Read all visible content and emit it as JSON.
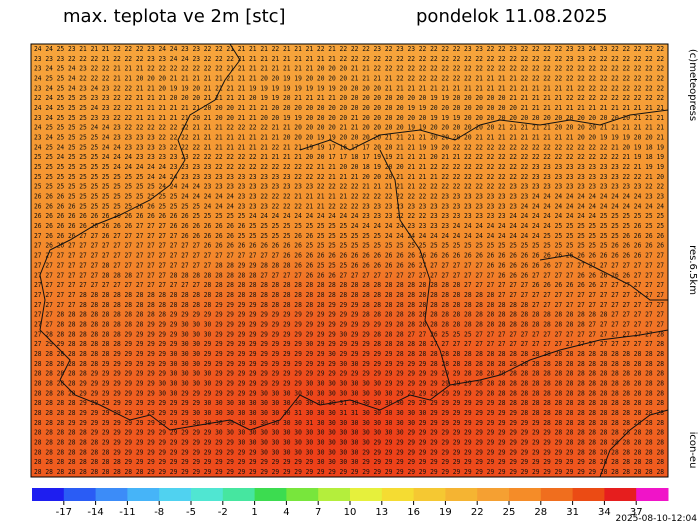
{
  "title": "max. teplota ve 2m [stc]",
  "date": "pondelok 11.08.2025",
  "copyright": "(c)meteopress",
  "resolution": "res.6.5km",
  "model": "icon-eu",
  "run": "2025-08-10-12:04",
  "grid_rows": [
    "24 24 25 23 21 21 21 22 22 22 23 24 24 23 23 22 22 21 21 21 21 22 21 21 21 22 21 22 22 22 23 22 23 23 22 22 22 22 23 23 22 22 23 22 22 22 22 23 23 24 23 22 22 22 22 22",
    "23 23 23 22 22 22 21 22 22 22 23 23 24 24 23 22 22 22 21 21 21 21 21 21 21 21 21 22 22 22 22 22 22 22 22 22 22 22 22 22 22 22 22 22 22 22 22 23 23 22 22 22 22 22 22 22",
    "23 24 25 24 23 22 22 21 21 21 22 22 22 22 22 22 22 21 21 21 21 21 21 21 21 20 20 20 21 21 22 22 22 22 22 22 22 22 22 22 22 22 22 22 22 22 22 22 22 22 22 22 22 22 22 22",
    "24 25 25 24 22 22 22 21 21 20 20 20 21 21 21 21 21 21 21 21 20 20 19 19 20 20 20 20 21 21 21 21 22 22 22 22 22 22 22 21 21 21 21 22 22 22 22 22 22 22 22 22 22 22 22 22",
    "23 24 25 24 23 24 23 22 22 21 21 20 19 19 20 21 21 21 21 19 19 19 19 19 19 19 19 20 20 20 20 21 21 21 21 21 21 21 21 21 21 21 21 21 21 21 21 21 22 22 22 22 22 22 22 22",
    "22 24 25 25 25 23 23 22 22 21 21 21 20 20 20 21 21 21 21 20 19 19 20 21 21 21 21 20 20 20 20 20 20 20 20 19 19 20 20 20 20 20 21 21 21 21 21 22 22 22 22 22 22 22 22 22",
    "24 24 25 25 25 24 23 22 22 21 21 21 21 21 21 20 20 20 21 21 21 20 20 20 20 20 20 20 20 20 20 20 20 19 19 20 20 20 20 20 20 20 20 21 21 21 21 21 21 21 21 21 21 21 21 21",
    "23 24 25 25 25 23 23 22 22 21 21 21 21 21 20 21 20 20 21 21 20 20 19 19 20 20 20 20 21 20 20 20 20 20 20 19 19 19 20 20 20 20 20 20 20 20 20 20 20 20 20 20 20 21 21 21",
    "24 25 25 25 25 24 24 23 22 22 22 22 22 22 21 21 21 22 22 22 22 21 21 20 20 20 20 21 21 20 20 20 20 19 19 20 20 20 20 20 20 21 21 21 21 21 20 20 20 20 21 21 21 21 21 21",
    "23 24 25 25 25 25 24 23 23 23 23 22 22 22 21 21 21 21 21 21 21 21 20 20 20 19 19 20 20 20 20 21 21 21 21 20 20 20 20 21 21 21 21 21 21 21 21 21 20 20 19 19 19 20 20 21",
    "24 25 24 25 25 25 24 24 23 23 23 23 22 22 22 21 21 21 21 21 21 22 21 21 19 19 17 16 17 17 20 20 21 21 19 19 20 22 22 22 22 22 22 22 22 22 22 22 22 22 22 21 20 19 18 19",
    "25 25 24 25 25 25 24 24 24 23 23 23 23 23 22 22 22 22 22 22 21 21 21 21 20 20 17 17 18 17 19 19 21 21 21 20 21 21 22 22 22 22 22 22 22 22 22 22 22 22 22 22 21 19 18 19",
    "25 25 25 25 25 25 25 24 24 24 24 24 23 23 23 23 22 22 22 22 22 22 22 22 22 21 21 20 20 18 19 20 20 21 21 22 22 22 22 22 22 22 22 22 23 23 23 23 23 23 23 23 22 21 19 19",
    "25 25 25 25 25 25 25 25 25 25 24 24 24 23 23 23 23 23 23 23 23 23 23 22 22 22 21 21 21 20 20 20 21 21 21 21 22 22 22 22 22 22 22 22 23 23 23 23 23 23 23 23 22 22 21 20",
    "25 25 25 25 25 25 25 25 25 25 25 24 24 24 24 23 23 23 23 23 23 23 23 23 23 22 22 22 22 21 21 21 21 21 22 22 22 22 22 22 22 22 23 23 23 23 23 23 23 23 23 23 23 23 22 22",
    "26 26 26 25 25 25 25 25 25 25 25 25 25 24 24 24 24 24 23 23 22 22 22 21 21 21 21 21 22 22 22 22 22 22 22 22 23 23 23 23 23 23 23 23 24 24 24 24 24 24 24 24 24 24 23 23",
    "26 26 26 26 25 25 25 25 25 26 26 25 25 25 25 24 24 24 23 23 23 22 22 22 21 21 22 22 22 23 23 23 23 23 23 23 23 23 23 23 23 23 23 24 24 24 24 24 24 24 24 24 24 24 24 24",
    "26 26 26 26 26 26 26 26 26 26 26 26 26 26 25 25 25 25 25 24 24 24 24 24 24 24 24 24 24 23 23 23 22 22 22 23 23 23 23 23 23 23 24 24 24 24 24 24 24 24 25 25 25 25 25 25",
    "26 26 26 26 26 26 26 26 26 27 27 27 26 26 26 26 26 26 26 25 25 25 25 25 25 25 25 25 24 24 24 24 24 23 23 23 23 24 24 24 24 24 24 24 24 24 25 25 25 25 25 25 25 26 25 25",
    "27 26 26 26 27 27 26 27 27 27 27 27 27 26 26 26 26 26 25 25 25 25 25 26 26 25 25 25 25 25 25 24 24 24 24 24 24 24 24 24 24 24 24 24 24 25 25 25 25 25 25 25 26 26 26 26",
    "27 26 26 27 27 27 27 27 27 27 27 27 27 27 27 26 26 26 26 26 26 26 26 26 25 25 25 25 25 25 25 25 25 25 25 25 25 25 25 25 25 25 25 25 25 25 25 25 25 25 25 26 26 26 26 26",
    "27 27 27 27 27 27 27 27 27 27 27 27 27 27 27 27 27 27 27 27 27 27 26 26 26 26 26 26 26 26 26 26 26 26 26 26 26 26 26 26 26 26 26 26 26 26 26 26 26 26 26 26 26 26 27 27",
    "27 27 27 27 27 27 28 27 27 27 27 27 27 27 27 27 28 28 29 29 28 28 28 26 26 25 25 25 26 26 26 26 26 26 27 27 27 27 27 27 26 26 26 26 26 26 27 27 27 27 27 27 27 27 27 27",
    "27 27 27 27 27 27 28 28 28 27 27 27 28 28 28 28 28 28 28 28 27 27 27 27 26 26 26 27 27 27 27 27 27 27 27 27 27 27 27 27 27 26 26 26 27 27 27 27 26 26 26 26 26 27 27 27",
    "27 27 27 27 27 27 27 27 27 27 27 27 27 27 27 28 28 28 28 28 28 28 28 28 28 28 28 28 28 28 28 28 28 28 28 28 28 28 27 27 27 27 27 27 26 26 26 26 26 26 27 27 27 27 27 27",
    "27 27 27 27 28 28 28 28 28 28 28 28 28 28 28 28 28 28 28 28 28 28 28 28 28 28 28 28 28 28 28 28 28 28 28 28 28 28 28 28 28 27 27 27 27 27 27 27 27 27 27 27 27 27 27 27",
    "27 27 27 27 28 28 28 28 28 28 28 28 28 28 28 28 29 29 29 29 28 28 28 28 28 28 29 29 29 28 28 28 28 28 28 28 28 28 28 28 28 28 28 28 27 27 27 27 27 27 27 27 27 27 27 27",
    "27 27 28 28 28 28 28 28 28 28 28 28 29 29 29 29 29 29 29 29 29 29 29 29 29 29 29 29 29 28 28 28 28 28 28 28 28 28 28 28 28 28 28 28 28 28 28 28 28 28 28 27 27 27 27 27",
    "27 27 28 28 28 28 28 28 28 28 29 29 29 30 30 30 29 29 29 29 29 29 29 29 29 29 29 29 29 29 29 29 28 28 28 28 28 28 28 28 28 28 28 28 28 28 28 28 28 27 27 27 27 27 27 27",
    "27 28 28 28 28 28 28 28 29 29 29 29 29 30 30 30 29 29 29 29 29 29 29 29 29 29 29 30 29 29 28 28 28 27 27 26 25 25 25 27 27 27 27 27 27 27 27 27 27 27 27 27 27 27 27 28",
    "27 29 29 28 28 28 28 28 29 29 29 29 29 30 30 29 29 29 29 29 29 29 29 29 30 29 29 29 29 29 28 28 28 28 28 27 27 27 27 27 27 27 27 27 27 27 27 27 27 27 27 27 27 27 27 28",
    "28 28 28 28 28 28 28 29 29 29 29 29 30 30 30 29 29 29 29 29 29 29 29 29 29 29 30 29 29 29 29 29 28 28 28 28 28 28 28 28 28 28 28 28 28 28 28 28 28 28 28 28 28 28 28 28",
    "28 28 28 28 28 28 29 29 29 29 29 29 30 30 30 29 29 29 29 29 29 29 29 29 29 29 29 30 30 29 29 29 29 29 29 28 28 28 28 28 28 28 28 28 28 28 28 28 28 28 28 28 28 28 28 28",
    "28 28 28 28 28 29 29 29 29 29 29 29 30 30 30 30 29 29 29 29 29 29 29 29 29 29 29 29 29 29 29 29 29 29 29 29 29 29 28 28 28 28 28 28 28 28 28 28 28 28 28 28 28 28 28 28",
    "28 28 28 28 29 29 29 29 29 29 29 30 30 30 30 30 29 29 29 29 29 29 29 29 30 30 30 30 30 30 30 29 29 29 29 29 29 29 29 28 28 28 28 28 28 28 28 28 28 28 28 28 28 28 28 28",
    "28 28 28 28 29 29 29 29 29 29 29 30 30 29 29 29 29 29 29 29 30 30 30 30 30 30 30 30 30 30 30 30 29 29 29 29 29 29 29 29 28 28 28 28 28 28 28 28 28 28 28 28 28 28 28 28",
    "28 28 28 28 29 29 29 29 29 29 29 29 29 29 29 30 30 30 30 30 30 30 30 30 30 30 30 31 30 30 30 30 30 29 29 29 29 29 29 29 29 28 28 28 28 28 28 28 28 28 28 28 28 28 28 28",
    "28 28 28 28 29 29 29 29 29 29 29 29 29 29 30 30 30 30 30 30 30 30 30 31 30 30 30 31 31 30 30 30 30 30 30 29 29 29 29 29 29 29 29 28 28 28 28 28 28 28 28 28 28 28 28 28",
    "28 28 28 29 29 29 29 29 29 29 29 29 29 29 30 30 30 30 30 30 30 30 30 30 31 30 30 30 30 30 30 30 30 30 29 29 29 29 29 29 29 29 29 29 29 28 28 28 28 28 28 28 28 28 28 28",
    "28 28 28 28 28 29 29 29 29 29 29 29 29 29 29 29 30 30 30 30 30 30 30 30 30 30 30 30 30 30 30 30 30 29 29 29 29 29 29 29 29 29 29 29 29 29 28 28 28 28 28 28 28 28 28 28",
    "28 28 28 28 28 28 29 29 29 29 29 29 29 29 29 29 29 29 30 30 30 30 30 30 30 30 30 30 30 30 29 29 29 29 29 29 29 29 29 29 29 29 29 29 29 29 29 28 28 28 28 28 28 28 28 28",
    "28 28 28 28 28 28 28 29 29 29 29 29 29 29 29 29 29 29 29 29 30 30 30 30 30 30 30 30 30 29 29 29 29 29 29 29 29 29 29 29 29 29 29 29 29 29 29 29 28 28 28 28 28 28 28 28",
    "28 28 28 28 28 28 28 28 29 29 29 29 29 29 29 29 29 29 29 29 29 29 29 29 29 30 30 30 30 29 29 29 29 29 29 29 29 29 29 29 29 29 29 29 29 29 29 29 29 28 28 28 28 28 28 28",
    "28 28 28 28 28 28 28 28 28 28 29 29 29 29 29 29 29 29 29 29 29 29 29 29 29 29 29 29 29 29 29 29 29 29 29 29 29 29 29 29 29 29 29 29 29 29 29 29 29 29 28 28 28 28 28 28"
  ],
  "colorbar": {
    "lim": [
      -20,
      40
    ],
    "ticks": [
      -17,
      -14,
      -11,
      -8,
      -5,
      -2,
      1,
      4,
      7,
      10,
      13,
      16,
      19,
      22,
      25,
      28,
      31,
      34,
      37
    ],
    "colors": [
      "#1e1ef0",
      "#2a5cf5",
      "#3c8cf8",
      "#46b4f8",
      "#50d2f0",
      "#50e6d2",
      "#46e6a0",
      "#3cdc50",
      "#78e63c",
      "#b4ee3c",
      "#e6f03c",
      "#f5dc32",
      "#f5c832",
      "#f5b432",
      "#f5a032",
      "#f58c28",
      "#f06e1e",
      "#eb4b14",
      "#e61e1e",
      "#f014c8"
    ]
  }
}
